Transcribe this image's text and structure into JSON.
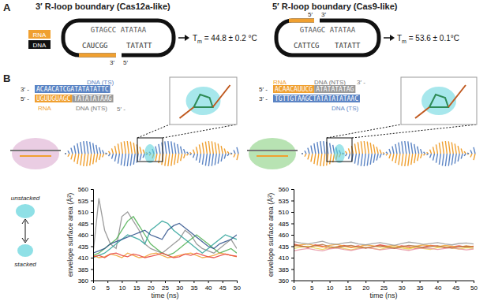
{
  "panel_a": {
    "label": "A",
    "left": {
      "title": "3′ R-loop boundary (Cas12a-like)",
      "legend_rna": "RNA",
      "legend_dna": "DNA",
      "top_strand": "GTAGCC ATATAA",
      "bottom_rna": "CAUCGG",
      "bottom_dna": "TATATT",
      "end_a": "3′",
      "end_b": "5′",
      "tm_symbol": "T",
      "tm_subscript": "m",
      "tm_text": " = 44.8 ± 0.2 °C"
    },
    "right": {
      "title": "5′ R-loop boundary (Cas9-like)",
      "top_strand": "GTAAGC ATATAA",
      "bottom_left": "CATTCG",
      "bottom_right": "TATATT",
      "end_a": "5′",
      "end_b": "3′",
      "tm_symbol": "T",
      "tm_subscript": "m",
      "tm_text": " = 53.6 ± 0.1°C"
    }
  },
  "panel_b": {
    "label": "B",
    "left": {
      "ts_prefix": "3′ -",
      "ts_seq": "ACAACATCGATATATATTC",
      "ts_label": "DNA (TS)",
      "rna_prefix": "5′ -",
      "rna_seq": "UGUUGUAGC",
      "nts_seq": "TATATATAAG",
      "rna_label": "RNA",
      "nts_label": "DNA (NTS)",
      "tail": "5′ -"
    },
    "right": {
      "rna_prefix": "5′ -",
      "rna_seq": "ACAACAUUCG",
      "nts_seq": "ATATATATAG",
      "rna_label": "RNA",
      "nts_label": "DNA (NTS)",
      "ts_prefix": "3′ -",
      "ts_seq": "TGTTGTAAGCTATATATATAAC",
      "ts_label": "DNA (TS)",
      "tail": "3′ -"
    },
    "state_unstacked": "unstacked",
    "state_stacked": "stacked"
  },
  "chart_data": [
    {
      "type": "line",
      "x_label": "time (ns)",
      "y_label": "envelope surface area (Å²)",
      "x": [
        0,
        2,
        4,
        6,
        8,
        10,
        12,
        14,
        16,
        18,
        20,
        22,
        24,
        26,
        28,
        30,
        32,
        34,
        36,
        38,
        40,
        42,
        44,
        46,
        48,
        50
      ],
      "xlim": [
        0,
        50
      ],
      "xticks": [
        0,
        5,
        10,
        15,
        20,
        25,
        30,
        35,
        40,
        45,
        50
      ],
      "ylim": [
        360,
        560
      ],
      "yticks": [
        360,
        385,
        410,
        435,
        460,
        485,
        510,
        535,
        560
      ],
      "series": [
        {
          "color": "#8c8c8c",
          "values": [
            420,
            540,
            470,
            440,
            430,
            500,
            510,
            490,
            470,
            440,
            430,
            425,
            420,
            430,
            440,
            450,
            470,
            460,
            440,
            430,
            425,
            420,
            430,
            440,
            450,
            430
          ]
        },
        {
          "color": "#4caf50",
          "values": [
            415,
            420,
            430,
            440,
            450,
            470,
            490,
            500,
            480,
            460,
            440,
            430,
            420,
            415,
            420,
            430,
            440,
            450,
            460,
            450,
            440,
            430,
            420,
            425,
            430,
            420
          ]
        },
        {
          "color": "#2aa198",
          "values": [
            410,
            415,
            420,
            430,
            440,
            450,
            460,
            455,
            450,
            440,
            470,
            480,
            490,
            485,
            470,
            460,
            450,
            440,
            430,
            420,
            430,
            440,
            450,
            460,
            455,
            450
          ]
        },
        {
          "color": "#2c4f8a",
          "values": [
            420,
            425,
            430,
            440,
            445,
            450,
            455,
            460,
            465,
            470,
            460,
            455,
            450,
            470,
            480,
            485,
            475,
            465,
            455,
            445,
            435,
            430,
            440,
            445,
            450,
            460
          ]
        },
        {
          "color": "#f0a030",
          "values": [
            415,
            410,
            412,
            418,
            415,
            410,
            420,
            415,
            410,
            412,
            418,
            420,
            415,
            410,
            412,
            415,
            418,
            420,
            415,
            410,
            412,
            415,
            420,
            418,
            415,
            412
          ]
        },
        {
          "color": "#e8413b",
          "values": [
            412,
            415,
            410,
            418,
            420,
            415,
            412,
            418,
            415,
            410,
            413,
            416,
            420,
            415,
            410,
            412,
            418,
            415,
            420,
            416,
            412,
            410,
            414,
            418,
            415,
            413
          ]
        }
      ]
    },
    {
      "type": "line",
      "x_label": "time (ns)",
      "y_label": "envelope surface area (Å²)",
      "x": [
        0,
        2,
        4,
        6,
        8,
        10,
        12,
        14,
        16,
        18,
        20,
        22,
        24,
        26,
        28,
        30,
        32,
        34,
        36,
        38,
        40,
        42,
        44,
        46,
        48,
        50
      ],
      "xlim": [
        0,
        50
      ],
      "xticks": [
        0,
        5,
        10,
        15,
        20,
        25,
        30,
        35,
        40,
        45,
        50
      ],
      "ylim": [
        360,
        560
      ],
      "yticks": [
        360,
        385,
        410,
        435,
        460,
        485,
        510,
        535,
        560
      ],
      "series": [
        {
          "color": "#e8413b",
          "values": [
            440,
            436,
            432,
            438,
            435,
            430,
            434,
            437,
            433,
            436,
            431,
            434,
            438,
            435,
            432,
            436,
            434,
            430,
            433,
            437,
            435,
            432,
            434,
            436,
            433,
            435
          ]
        },
        {
          "color": "#f0a030",
          "values": [
            435,
            438,
            440,
            436,
            433,
            437,
            439,
            435,
            432,
            434,
            438,
            436,
            433,
            435,
            437,
            434,
            431,
            435,
            438,
            436,
            434,
            437,
            435,
            433,
            436,
            434
          ]
        },
        {
          "color": "#e8d44d",
          "values": [
            430,
            433,
            435,
            431,
            428,
            432,
            434,
            430,
            427,
            431,
            433,
            430,
            428,
            432,
            434,
            431,
            429,
            433,
            430,
            428,
            432,
            434,
            431,
            429,
            432,
            430
          ]
        },
        {
          "color": "#9a9a9a",
          "values": [
            445,
            442,
            440,
            443,
            446,
            441,
            439,
            442,
            444,
            440,
            438,
            441,
            443,
            440,
            437,
            441,
            444,
            442,
            439,
            441,
            443,
            440,
            438,
            441,
            442,
            440
          ]
        },
        {
          "color": "#e890a0",
          "values": [
            425,
            428,
            430,
            427,
            425,
            429,
            431,
            428,
            426,
            429,
            432,
            430,
            427,
            429,
            431,
            428,
            426,
            429,
            431,
            430,
            428,
            430,
            432,
            429,
            427,
            429
          ]
        },
        {
          "color": "#b07040",
          "values": [
            438,
            435,
            433,
            436,
            439,
            434,
            432,
            435,
            437,
            433,
            431,
            434,
            436,
            433,
            430,
            434,
            437,
            435,
            432,
            434,
            436,
            433,
            431,
            434,
            435,
            433
          ]
        }
      ]
    }
  ]
}
